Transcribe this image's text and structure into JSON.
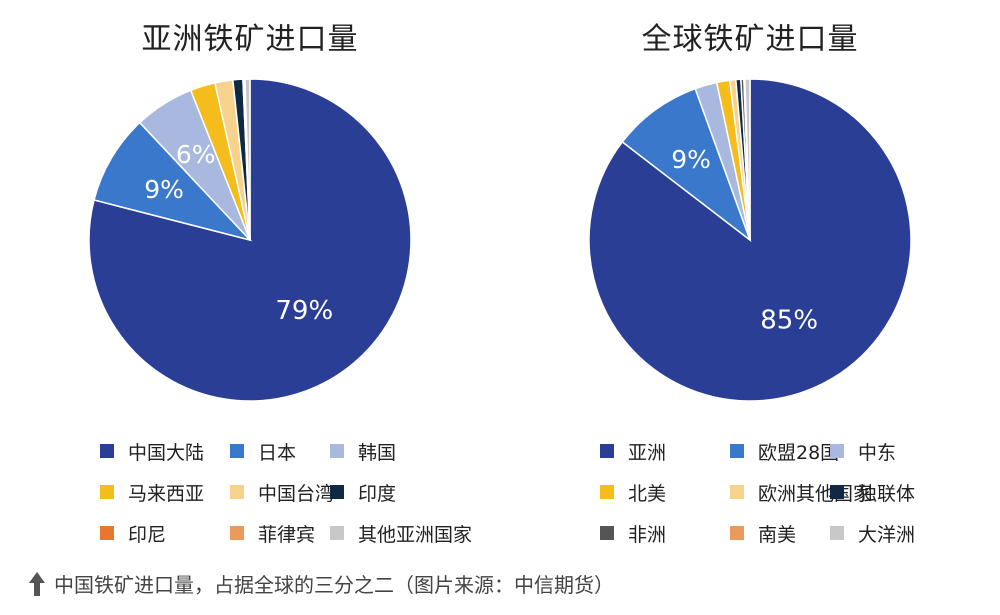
{
  "chart_data": [
    {
      "type": "pie",
      "title": "亚洲铁矿进口量",
      "categories": [
        "中国大陆",
        "日本",
        "韩国",
        "马来西亚",
        "中国台湾",
        "印度",
        "印尼",
        "菲律宾",
        "其他亚洲国家"
      ],
      "values": [
        79,
        9,
        6,
        2.5,
        1.8,
        1.0,
        0.1,
        0.1,
        0.5
      ],
      "colors": [
        "#2a3e96",
        "#3a78cc",
        "#a9b8de",
        "#f5bd1b",
        "#f7d28c",
        "#0f2945",
        "#e8772e",
        "#ec9a5c",
        "#c8c8c8"
      ],
      "data_labels": [
        "79%",
        "9%",
        "6%",
        "",
        "",
        "",
        "",
        "",
        ""
      ],
      "legend_rows": [
        [
          0,
          1,
          2
        ],
        [
          3,
          4,
          5
        ],
        [
          6,
          7,
          8
        ]
      ],
      "legend_placement": "bottom"
    },
    {
      "type": "pie",
      "title": "全球铁矿进口量",
      "categories": [
        "亚洲",
        "欧盟28国",
        "中东",
        "北美",
        "欧洲其他国家",
        "独联体",
        "非洲",
        "南美",
        "大洋洲"
      ],
      "values": [
        85,
        9,
        2.2,
        1.3,
        0.6,
        0.5,
        0.3,
        0.1,
        0.5
      ],
      "colors": [
        "#2a3e96",
        "#3a78cc",
        "#a9b8de",
        "#f5bd1b",
        "#f7d28c",
        "#0f2945",
        "#555555",
        "#ec9a5c",
        "#c8c8c8"
      ],
      "data_labels": [
        "85%",
        "9%",
        "",
        "",
        "",
        "",
        "",
        "",
        ""
      ],
      "legend_rows": [
        [
          0,
          1,
          2
        ],
        [
          3,
          4,
          5
        ],
        [
          6,
          7,
          8
        ]
      ],
      "legend_placement": "bottom"
    }
  ],
  "caption": {
    "icon": "arrow-up-icon",
    "text": "中国铁矿进口量，占据全球的三分之二（图片来源：中信期货）"
  }
}
